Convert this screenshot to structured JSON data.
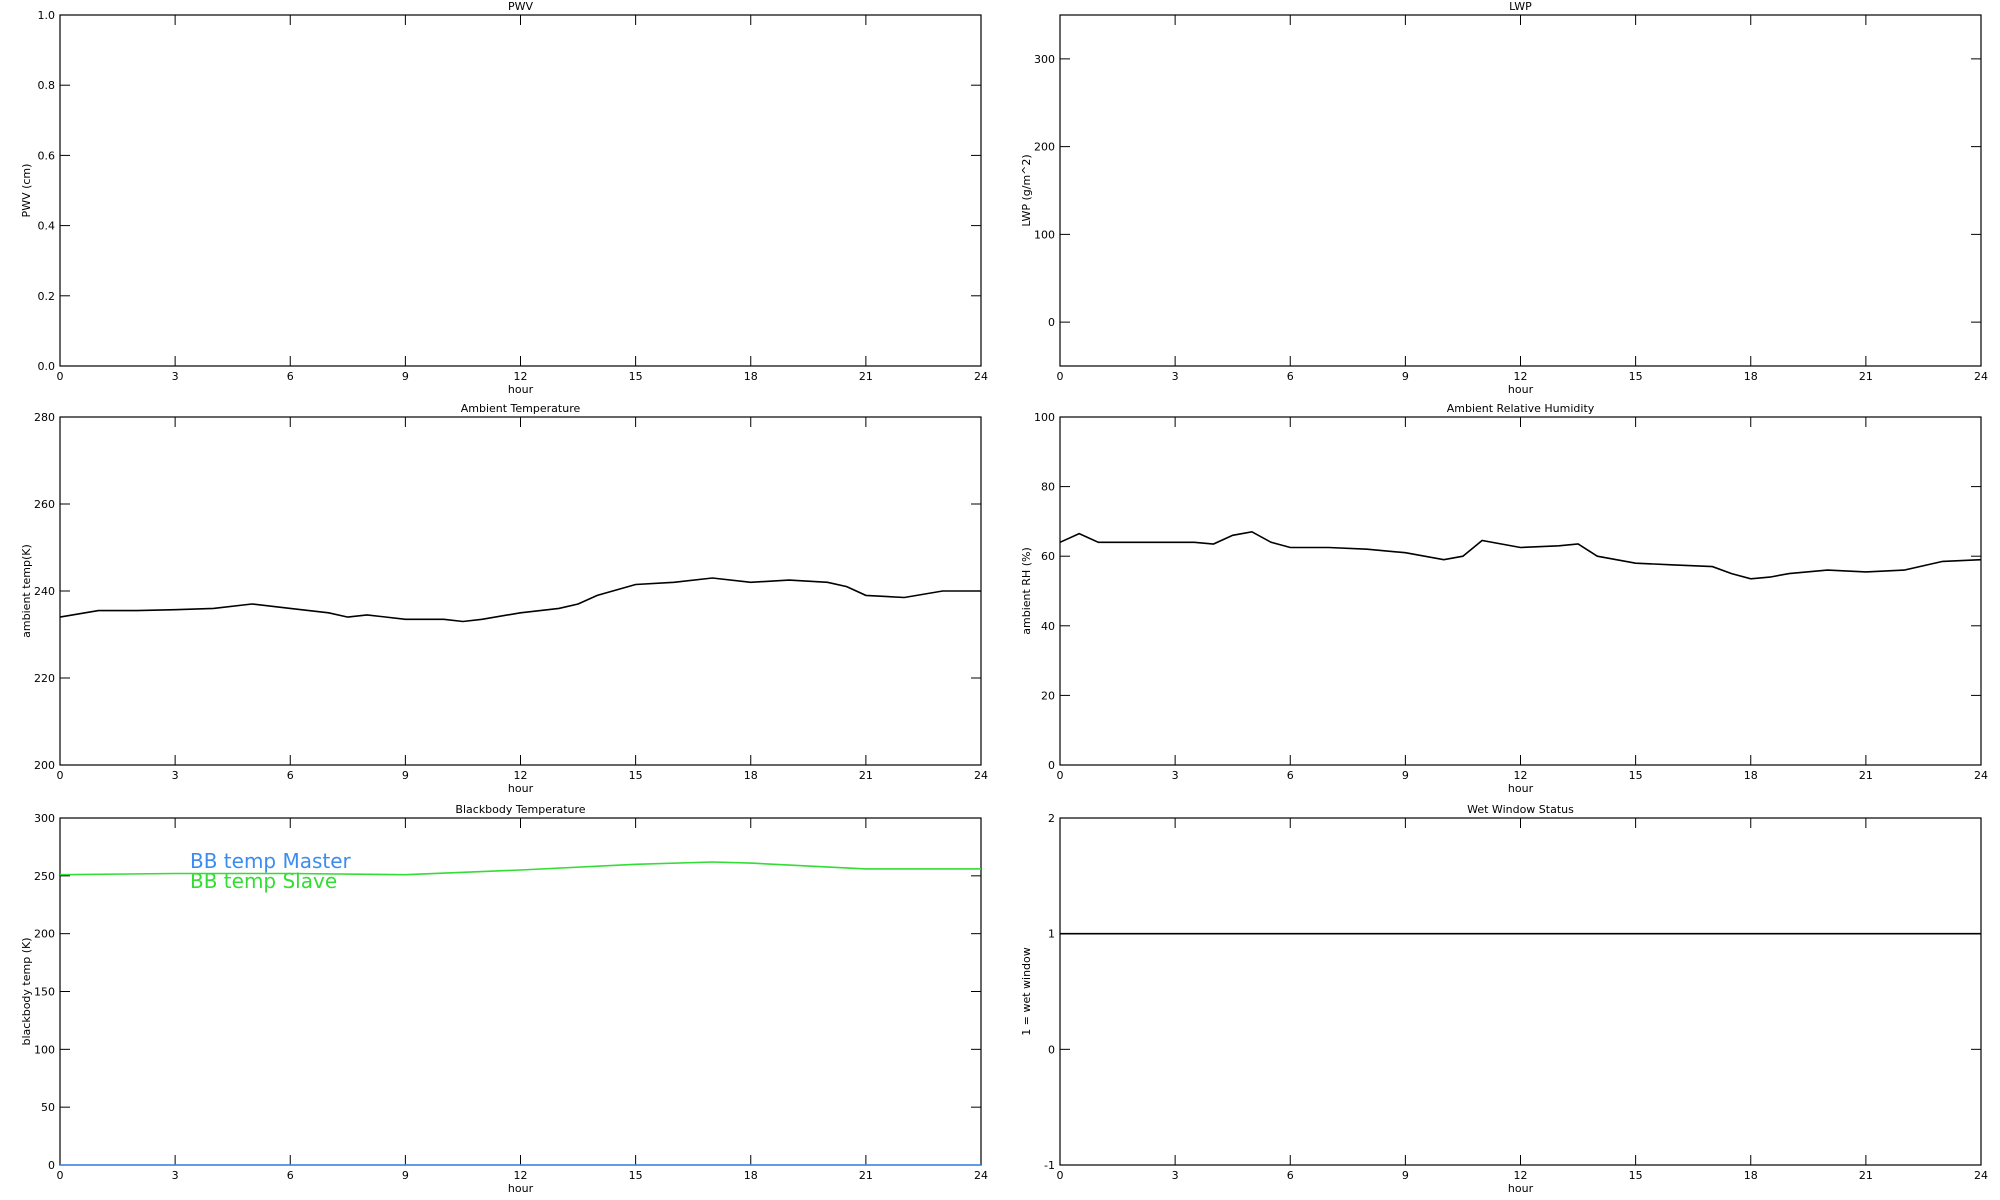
{
  "chart_data": [
    {
      "type": "line",
      "title": "PWV",
      "xlabel": "hour",
      "ylabel": "PWV (cm)",
      "xlim": [
        0,
        24
      ],
      "xticks": [
        0,
        3,
        6,
        9,
        12,
        15,
        18,
        21,
        24
      ],
      "ylim": [
        0,
        1
      ],
      "yticks": [
        {
          "value": 0,
          "label": "0.0"
        },
        {
          "value": 0.2,
          "label": "0.2"
        },
        {
          "value": 0.4,
          "label": "0.4"
        },
        {
          "value": 0.6,
          "label": "0.6"
        },
        {
          "value": 0.8,
          "label": "0.8"
        },
        {
          "value": 1,
          "label": "1.0"
        }
      ]
    },
    {
      "type": "line",
      "title": "LWP",
      "xlabel": "hour",
      "ylabel": "LWP (g/m^2)",
      "xlim": [
        0,
        24
      ],
      "xticks": [
        0,
        3,
        6,
        9,
        12,
        15,
        18,
        21,
        24
      ],
      "ylim": [
        -50,
        350
      ],
      "yticks": [
        0,
        100,
        200,
        300
      ]
    },
    {
      "type": "line",
      "title": "Ambient Temperature",
      "xlabel": "hour",
      "ylabel": "ambient temp(K)",
      "xlim": [
        0,
        24
      ],
      "xticks": [
        0,
        3,
        6,
        9,
        12,
        15,
        18,
        21,
        24
      ],
      "ylim": [
        200,
        280
      ],
      "yticks": [
        200,
        220,
        240,
        260,
        280
      ],
      "x": [
        0,
        1,
        2,
        3,
        4,
        5,
        6,
        7,
        7.5,
        8,
        9,
        10,
        10.5,
        11,
        12,
        13,
        13.5,
        14,
        15,
        16,
        17,
        18,
        19,
        20,
        20.5,
        21,
        22,
        23,
        24
      ],
      "series": [
        {
          "color": "#000000",
          "values": [
            234,
            235.5,
            235.5,
            235.7,
            236,
            237,
            236,
            235,
            234,
            234.5,
            233.5,
            233.5,
            233,
            233.5,
            235,
            236,
            237,
            239,
            241.5,
            242,
            243,
            242,
            242.5,
            242,
            241,
            239,
            238.5,
            240,
            240
          ]
        }
      ]
    },
    {
      "type": "line",
      "title": "Ambient Relative Humidity",
      "xlabel": "hour",
      "ylabel": "ambient RH (%)",
      "xlim": [
        0,
        24
      ],
      "xticks": [
        0,
        3,
        6,
        9,
        12,
        15,
        18,
        21,
        24
      ],
      "ylim": [
        0,
        100
      ],
      "yticks": [
        0,
        20,
        40,
        60,
        80,
        100
      ],
      "x": [
        0,
        0.5,
        1,
        2,
        3,
        3.5,
        4,
        4.5,
        5,
        5.5,
        6,
        7,
        8,
        9,
        10,
        10.5,
        11,
        12,
        13,
        13.5,
        14,
        15,
        16,
        17,
        17.5,
        18,
        18.5,
        19,
        20,
        21,
        22,
        23,
        24
      ],
      "series": [
        {
          "color": "#000000",
          "values": [
            64,
            66.5,
            64,
            64,
            64,
            64,
            63.5,
            66,
            67,
            64,
            62.5,
            62.5,
            62,
            61,
            59,
            60,
            64.5,
            62.5,
            63,
            63.5,
            60,
            58,
            57.5,
            57,
            55,
            53.5,
            54,
            55,
            56,
            55.5,
            56,
            58.5,
            59
          ]
        }
      ]
    },
    {
      "type": "line",
      "title": "Blackbody Temperature",
      "xlabel": "hour",
      "ylabel": "blackbody temp (K)",
      "xlim": [
        0,
        24
      ],
      "xticks": [
        0,
        3,
        6,
        9,
        12,
        15,
        18,
        21,
        24
      ],
      "ylim": [
        0,
        300
      ],
      "yticks": [
        0,
        50,
        100,
        150,
        200,
        250,
        300
      ],
      "x": [
        0,
        3,
        6,
        9,
        12,
        15,
        17,
        18,
        21,
        24
      ],
      "series": [
        {
          "name": "BB temp Master",
          "color": "#3c8cf0",
          "values": [
            0,
            0,
            0,
            0,
            0,
            0,
            0,
            0,
            0,
            0
          ]
        },
        {
          "name": "BB temp Slave",
          "color": "#33dd33",
          "values": [
            251,
            252,
            252,
            251,
            255,
            260,
            262,
            261,
            256,
            256
          ]
        }
      ]
    },
    {
      "type": "line",
      "title": "Wet Window Status",
      "xlabel": "hour",
      "ylabel": "1 = wet window",
      "xlim": [
        0,
        24
      ],
      "xticks": [
        0,
        3,
        6,
        9,
        12,
        15,
        18,
        21,
        24
      ],
      "ylim": [
        -1,
        2
      ],
      "yticks": [
        -1,
        0,
        1,
        2
      ],
      "x": [
        0,
        24
      ],
      "series": [
        {
          "color": "#000000",
          "values": [
            1,
            1
          ]
        }
      ]
    }
  ]
}
